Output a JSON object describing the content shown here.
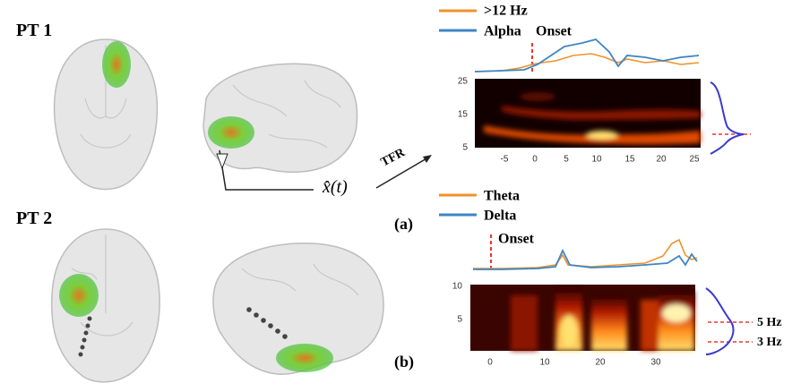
{
  "panel_a": {
    "patient": "PT 1",
    "label": "(a)",
    "source_label": "x̂(t)",
    "arrow_label": "TFR",
    "legend": [
      ">12 Hz",
      "Alpha"
    ],
    "onset_label": "Onset",
    "heatmap_yticks": [
      25,
      15,
      5
    ],
    "heatmap_xticks": [
      -5,
      0,
      5,
      10,
      15,
      20,
      25
    ]
  },
  "panel_b": {
    "patient": "PT 2",
    "label": "(b)",
    "legend": [
      "Theta",
      "Delta"
    ],
    "onset_label": "Onset",
    "heatmap_yticks": [
      10,
      5
    ],
    "heatmap_xticks": [
      0,
      10,
      20,
      30
    ],
    "peak_labels": [
      "5 Hz",
      "3 Hz"
    ]
  }
}
